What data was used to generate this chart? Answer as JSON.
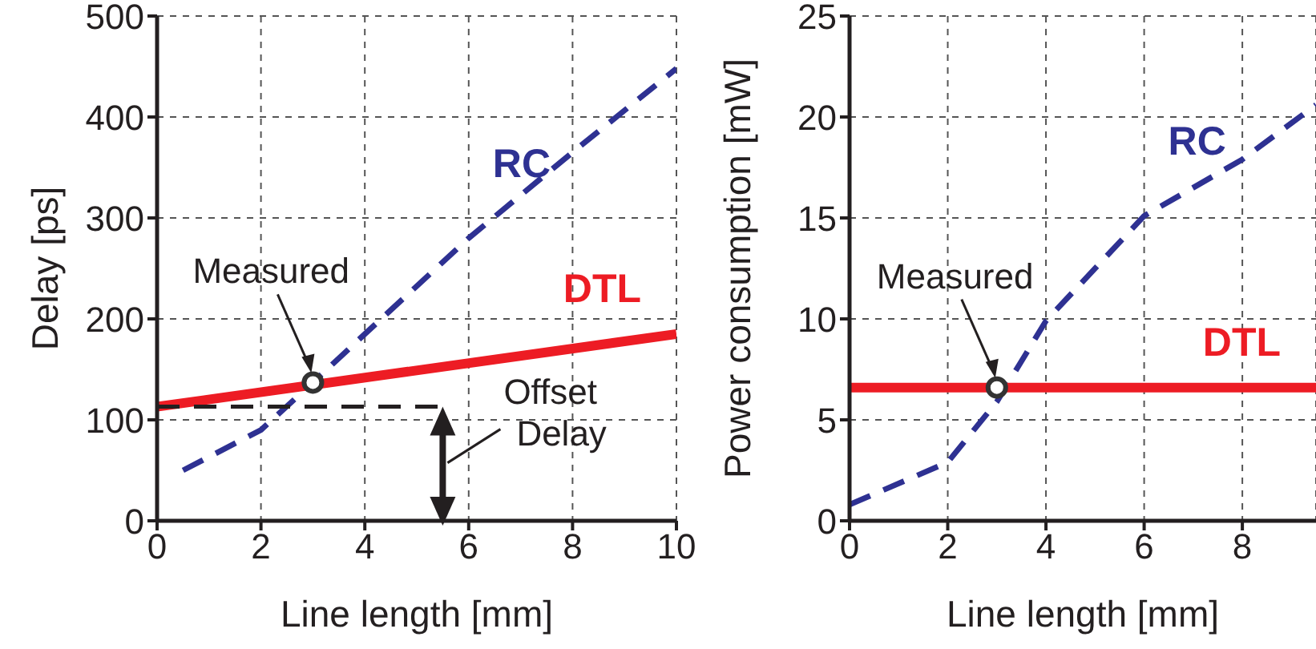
{
  "chart_data": [
    {
      "type": "line",
      "ylabel": "Delay [ps]",
      "xlabel": "Line length [mm]",
      "xlim": [
        0,
        10
      ],
      "xticks": [
        0,
        2,
        4,
        6,
        8,
        10
      ],
      "ylim": [
        0,
        500
      ],
      "yticks": [
        0,
        100,
        200,
        300,
        400,
        500
      ],
      "grid": true,
      "legend": false,
      "series": [
        {
          "name": "RC",
          "color": "#2e3192",
          "line_style": "dashed",
          "x": [
            0.5,
            2,
            3,
            4,
            6,
            8,
            10
          ],
          "values": [
            50,
            90,
            137,
            185,
            280,
            365,
            448
          ]
        },
        {
          "name": "DTL",
          "color": "#ed1c24",
          "line_style": "solid",
          "x": [
            0,
            10
          ],
          "values": [
            113,
            185
          ]
        },
        {
          "color": "#231f20",
          "line_style": "dashed",
          "x": [
            0,
            5.5
          ],
          "values": [
            113,
            113
          ]
        },
        {
          "type": "scatter",
          "marker": "circle",
          "color": "#333333",
          "x": [
            3
          ],
          "values": [
            137
          ]
        }
      ],
      "annotations": [
        "Measured",
        {
          "text": "Offset Delay",
          "x": 5.5,
          "y": 113
        }
      ]
    },
    {
      "type": "line",
      "ylabel": "Power consumption [mW]",
      "xlabel": "Line length [mm]",
      "xlim": [
        0,
        9.5
      ],
      "xticks": [
        0,
        2,
        4,
        6,
        8
      ],
      "ylim": [
        0,
        25
      ],
      "yticks": [
        0,
        5,
        10,
        15,
        20,
        25
      ],
      "grid": true,
      "legend": false,
      "series": [
        {
          "name": "RC",
          "color": "#2e3192",
          "line_style": "dashed",
          "x": [
            0,
            2,
            3,
            4,
            6,
            8,
            9.5
          ],
          "values": [
            0.8,
            2.9,
            5.9,
            9.9,
            15.1,
            17.9,
            20.6
          ]
        },
        {
          "name": "DTL",
          "color": "#ed1c24",
          "line_style": "solid",
          "x": [
            0,
            9.5
          ],
          "values": [
            6.6,
            6.6
          ]
        },
        {
          "type": "scatter",
          "marker": "circle",
          "color": "#333333",
          "x": [
            3
          ],
          "values": [
            6.6
          ]
        }
      ],
      "annotations": [
        "Measured"
      ]
    }
  ]
}
